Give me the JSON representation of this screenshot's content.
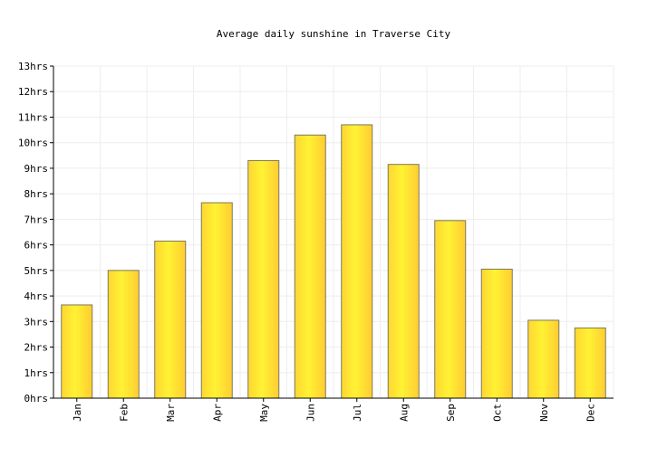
{
  "chart_data": {
    "type": "bar",
    "title": "Average daily sunshine in Traverse City",
    "xlabel": "",
    "ylabel": "",
    "categories": [
      "Jan",
      "Feb",
      "Mar",
      "Apr",
      "May",
      "Jun",
      "Jul",
      "Aug",
      "Sep",
      "Oct",
      "Nov",
      "Dec"
    ],
    "values": [
      3.65,
      5.0,
      6.15,
      7.65,
      9.3,
      10.3,
      10.7,
      9.15,
      6.95,
      5.05,
      3.05,
      2.75
    ],
    "ylim": [
      0,
      13
    ],
    "y_ticks": [
      "0hrs",
      "1hrs",
      "2hrs",
      "3hrs",
      "4hrs",
      "5hrs",
      "6hrs",
      "7hrs",
      "8hrs",
      "9hrs",
      "10hrs",
      "11hrs",
      "12hrs",
      "13hrs"
    ],
    "grid": true,
    "legend": "none",
    "colors": {
      "bar_left": "#ffd633",
      "bar_mid": "#fff233",
      "bar_right": "#ffcc33",
      "bar_stroke": "#7a7a5a",
      "grid": "#eeeeee",
      "axis": "#000000"
    }
  }
}
